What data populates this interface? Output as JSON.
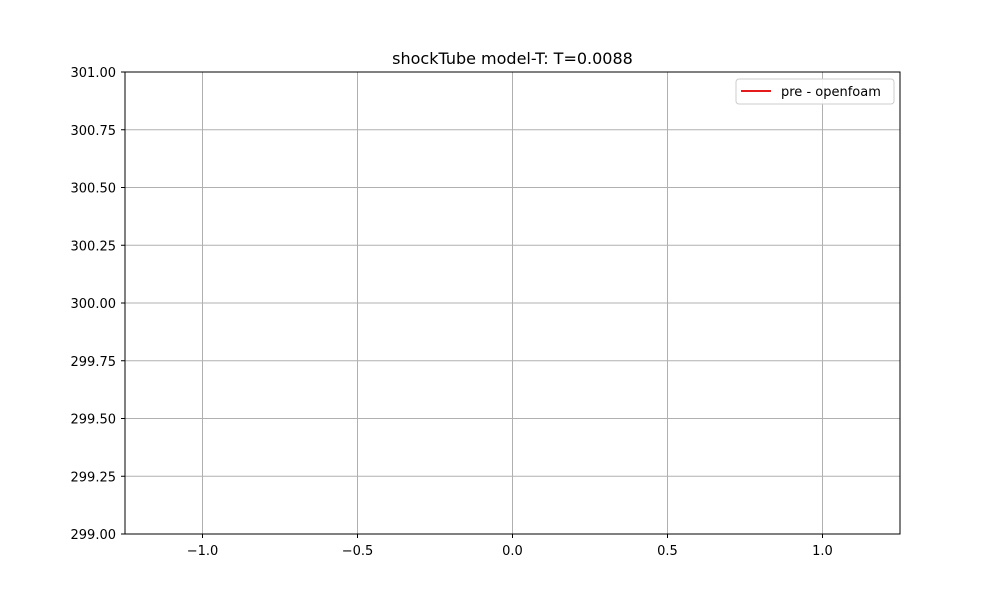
{
  "chart_data": {
    "type": "line",
    "title": "shockTube model-T: T=0.0088",
    "xlabel": "",
    "ylabel": "",
    "xlim": [
      -1.25,
      1.25
    ],
    "ylim": [
      299.0,
      301.0
    ],
    "x_ticks": [
      -1.0,
      -0.5,
      0.0,
      0.5,
      1.0
    ],
    "x_tick_labels": [
      "−1.0",
      "−0.5",
      "0.0",
      "0.5",
      "1.0"
    ],
    "y_ticks": [
      299.0,
      299.25,
      299.5,
      299.75,
      300.0,
      300.25,
      300.5,
      300.75,
      301.0
    ],
    "y_tick_labels": [
      "299.00",
      "299.25",
      "299.50",
      "299.75",
      "300.00",
      "300.25",
      "300.50",
      "300.75",
      "301.00"
    ],
    "grid": true,
    "legend_position": "top-right",
    "series": [
      {
        "name": "pre - openfoam",
        "color": "#e41a1c",
        "x": [],
        "y": []
      }
    ]
  }
}
